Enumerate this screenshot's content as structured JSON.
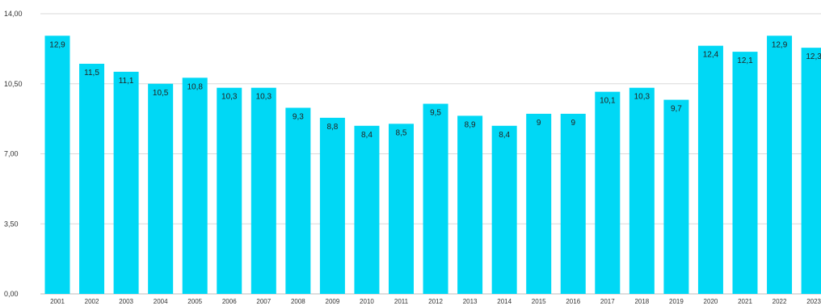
{
  "chart_data": {
    "type": "bar",
    "categories": [
      "2001",
      "2002",
      "2003",
      "2004",
      "2005",
      "2006",
      "2007",
      "2008",
      "2009",
      "2010",
      "2011",
      "2012",
      "2013",
      "2014",
      "2015",
      "2016",
      "2017",
      "2018",
      "2019",
      "2020",
      "2021",
      "2022",
      "2023"
    ],
    "values": [
      12.9,
      11.5,
      11.1,
      10.5,
      10.8,
      10.3,
      10.3,
      9.3,
      8.8,
      8.4,
      8.5,
      9.5,
      8.9,
      8.4,
      9,
      9,
      10.1,
      10.3,
      9.7,
      12.4,
      12.1,
      12.9,
      12.3
    ],
    "value_labels": [
      "12,9",
      "11,5",
      "11,1",
      "10,5",
      "10,8",
      "10,3",
      "10,3",
      "9,3",
      "8,8",
      "8,4",
      "8,5",
      "9,5",
      "8,9",
      "8,4",
      "9",
      "9",
      "10,1",
      "10,3",
      "9,7",
      "12,4",
      "12,1",
      "12,9",
      "12,3"
    ],
    "y_ticks": [
      0,
      3.5,
      7,
      10.5,
      14
    ],
    "y_tick_labels": [
      "0,00",
      "3,50",
      "7,00",
      "10,50",
      "14,00"
    ],
    "ylim": [
      0,
      14
    ],
    "grid": true,
    "legend": "none",
    "colors": {
      "bar": "#00d8f5",
      "grid": "#d9d9d9",
      "axis": "#bdbdbd"
    }
  }
}
